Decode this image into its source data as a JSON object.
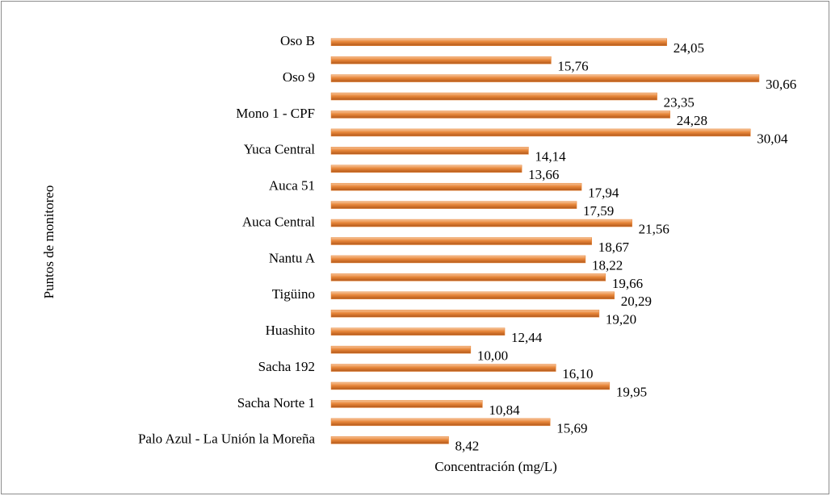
{
  "chart_data": {
    "type": "bar",
    "orientation": "horizontal",
    "x_label": "Concentración (mg/L)",
    "y_label": "Puntos de monitoreo",
    "categories": [
      "Oso B",
      null,
      "Oso 9",
      null,
      "Mono 1 - CPF",
      null,
      "Yuca Central",
      null,
      "Auca 51",
      null,
      "Auca Central",
      null,
      "Nantu A",
      null,
      "Tigüino",
      null,
      "Huashito",
      null,
      "Sacha 192",
      null,
      "Sacha Norte 1",
      null,
      "Palo Azul - La Unión la Moreña"
    ],
    "values": [
      24.05,
      15.76,
      30.66,
      23.35,
      24.28,
      30.04,
      14.14,
      13.66,
      17.94,
      17.59,
      21.56,
      18.67,
      18.22,
      19.66,
      20.29,
      19.2,
      12.44,
      10.0,
      16.1,
      19.95,
      10.84,
      15.69,
      8.42
    ],
    "value_labels": [
      "24,05",
      "15,76",
      "30,66",
      "23,35",
      "24,28",
      "30,04",
      "14,14",
      "13,66",
      "17,94",
      "17,59",
      "21,56",
      "18,67",
      "18,22",
      "19,66",
      "20,29",
      "19,20",
      "12,44",
      "10,00",
      "16,10",
      "19,95",
      "10,84",
      "15,69",
      "8,42"
    ],
    "color": "#e8873a",
    "xlim": [
      0,
      35
    ]
  }
}
